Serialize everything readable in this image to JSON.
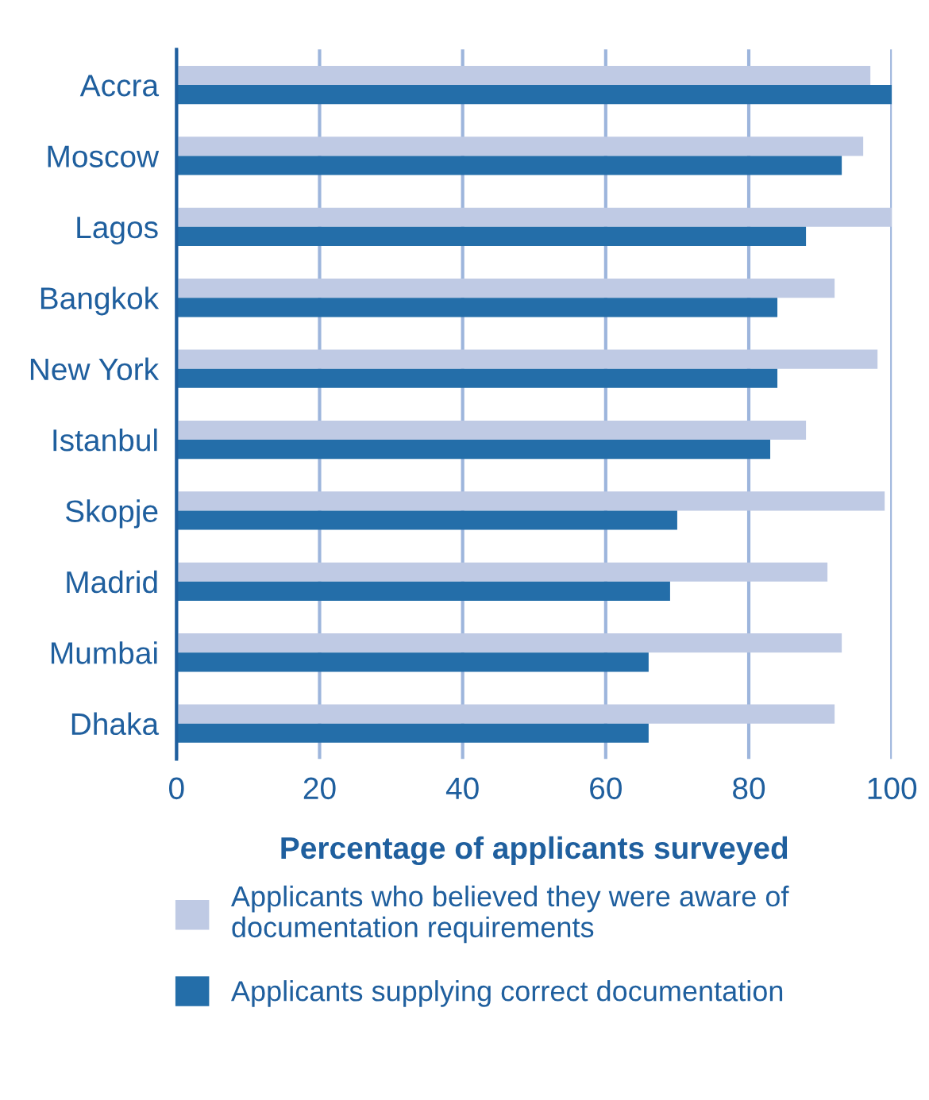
{
  "chart_data": {
    "type": "bar",
    "orientation": "horizontal",
    "categories": [
      "Accra",
      "Moscow",
      "Lagos",
      "Bangkok",
      "New York",
      "Istanbul",
      "Skopje",
      "Madrid",
      "Mumbai",
      "Dhaka"
    ],
    "series": [
      {
        "name": "Applicants who believed they were aware of documentation requirements",
        "color": "#bfcae4",
        "values": [
          97,
          96,
          100,
          92,
          98,
          88,
          99,
          91,
          93,
          92
        ]
      },
      {
        "name": "Applicants supplying correct documentation",
        "color": "#246ea9",
        "values": [
          100,
          93,
          88,
          84,
          84,
          83,
          70,
          69,
          66,
          66
        ]
      }
    ],
    "xlabel": "Percentage of applicants surveyed",
    "xlim": [
      0,
      100
    ],
    "xticks": [
      0,
      20,
      40,
      60,
      80,
      100
    ],
    "grid": "x",
    "legend": "bottom"
  }
}
